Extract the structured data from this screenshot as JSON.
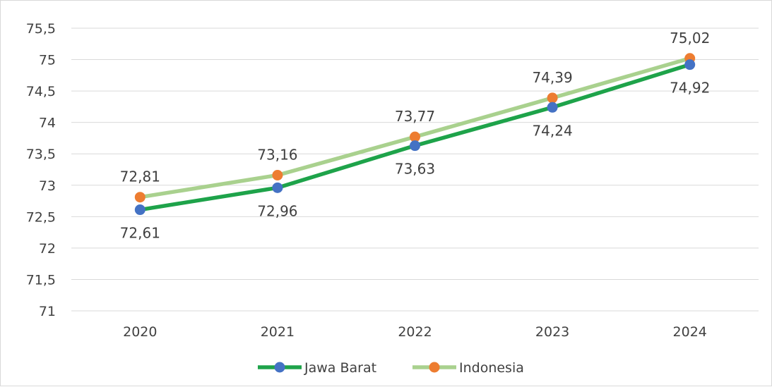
{
  "chart_data": {
    "type": "line",
    "categories": [
      "2020",
      "2021",
      "2022",
      "2023",
      "2024"
    ],
    "series": [
      {
        "name": "Jawa Barat",
        "values": [
          72.61,
          72.96,
          73.63,
          74.24,
          74.92
        ],
        "labels": [
          "72,61",
          "72,96",
          "73,63",
          "74,24",
          "74,92"
        ],
        "line_color": "#1ea34a",
        "marker_color": "#4472c4",
        "label_position": "below"
      },
      {
        "name": "Indonesia",
        "values": [
          72.81,
          73.16,
          73.77,
          74.39,
          75.02
        ],
        "labels": [
          "72,81",
          "73,16",
          "73,77",
          "74,39",
          "75,02"
        ],
        "line_color": "#a9d18e",
        "marker_color": "#ed7d31",
        "label_position": "above"
      }
    ],
    "ylim": [
      71,
      75.5
    ],
    "yticks": [
      71,
      71.5,
      72,
      72.5,
      73,
      73.5,
      74,
      74.5,
      75,
      75.5
    ],
    "ytick_labels": [
      "71",
      "71,5",
      "72",
      "72,5",
      "73",
      "73,5",
      "74",
      "74,5",
      "75",
      "75,5"
    ],
    "grid": "horizontal",
    "legend_position": "bottom",
    "title": "",
    "xlabel": "",
    "ylabel": ""
  }
}
